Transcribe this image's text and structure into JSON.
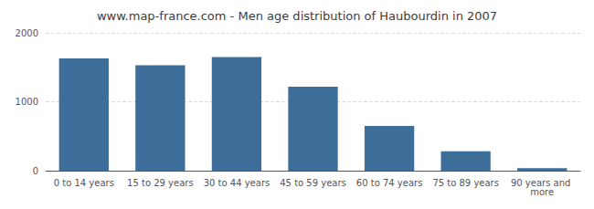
{
  "chart_data": {
    "type": "bar",
    "title": "www.map-france.com - Men age distribution of Haubourdin in 2007",
    "categories": [
      "0 to 14 years",
      "15 to 29 years",
      "30 to 44 years",
      "45 to 59 years",
      "60 to 74 years",
      "75 to 89 years",
      "90 years and more"
    ],
    "values": [
      1630,
      1530,
      1650,
      1220,
      650,
      280,
      35
    ],
    "color": "#3d6e99",
    "ylim": [
      0,
      2000
    ],
    "yticks": [
      0,
      1000,
      2000
    ],
    "grid": true
  }
}
